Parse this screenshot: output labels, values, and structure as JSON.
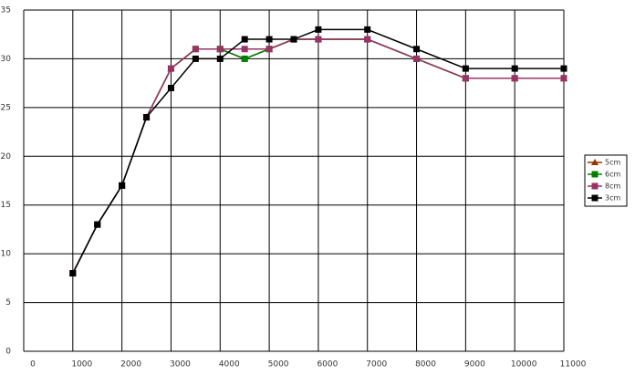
{
  "chart_data": {
    "type": "line",
    "x": [
      1000,
      1500,
      2000,
      2500,
      3000,
      3500,
      4000,
      4500,
      5000,
      5500,
      6000,
      7000,
      8000,
      9000,
      10000,
      11000
    ],
    "series": [
      {
        "name": "5cm",
        "color": "#993300",
        "marker": "triangle",
        "values": [
          8,
          13,
          17,
          24,
          29,
          31,
          31,
          30,
          31,
          32,
          32,
          32,
          30,
          28,
          28,
          28
        ]
      },
      {
        "name": "6cm",
        "color": "#008000",
        "marker": "square",
        "values": [
          8,
          13,
          17,
          24,
          29,
          31,
          31,
          30,
          31,
          32,
          32,
          32,
          30,
          28,
          28,
          28
        ]
      },
      {
        "name": "8cm",
        "color": "#993366",
        "marker": "square",
        "values": [
          8,
          13,
          17,
          24,
          29,
          31,
          31,
          31,
          31,
          32,
          32,
          32,
          30,
          28,
          28,
          28
        ]
      },
      {
        "name": "3cm",
        "color": "#000000",
        "marker": "square",
        "values": [
          8,
          13,
          17,
          24,
          27,
          30,
          30,
          32,
          32,
          32,
          33,
          33,
          31,
          29,
          29,
          29
        ]
      }
    ],
    "xlim": [
      0,
      11000
    ],
    "xticks": [
      0,
      1000,
      2000,
      3000,
      4000,
      5000,
      6000,
      7000,
      8000,
      9000,
      10000,
      11000
    ],
    "ylim": [
      0,
      35
    ],
    "yticks": [
      0,
      5,
      10,
      15,
      20,
      25,
      30,
      35
    ],
    "grid": true,
    "legend": "right"
  }
}
